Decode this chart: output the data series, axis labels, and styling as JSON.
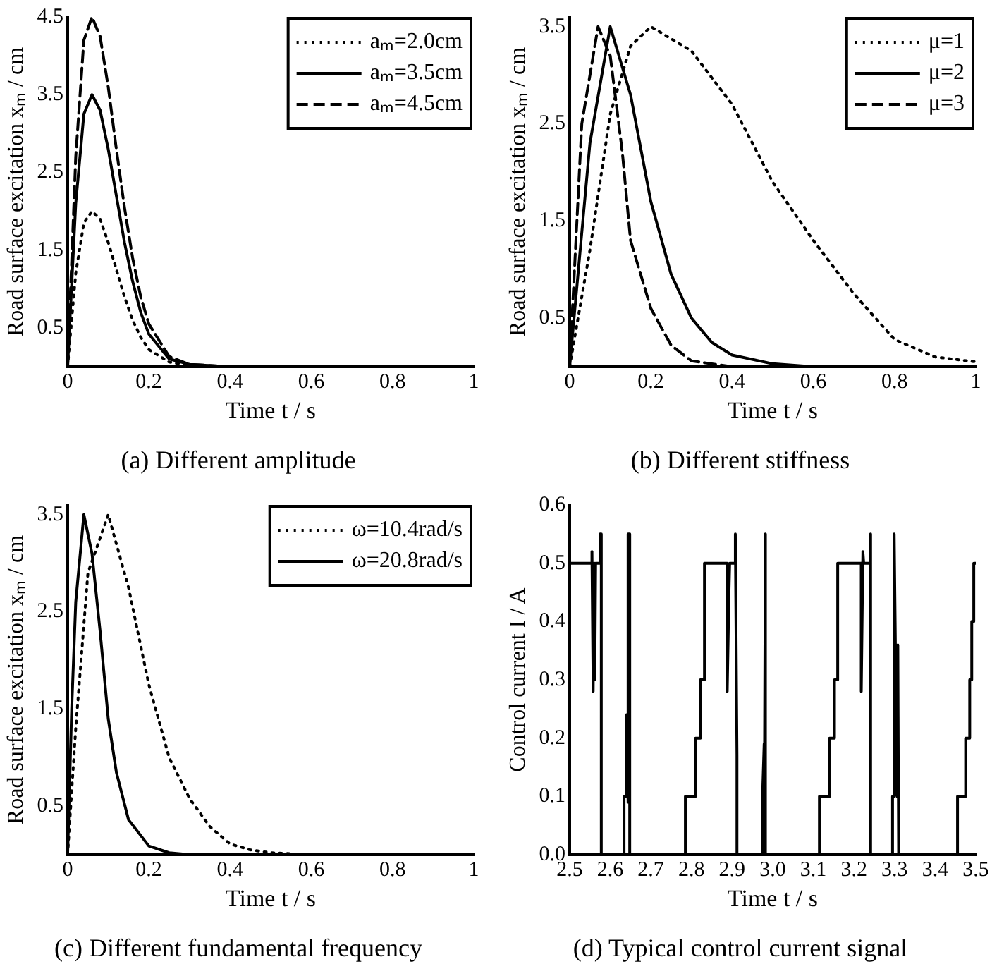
{
  "chart_data": [
    {
      "type": "line",
      "title": "(a) Different amplitude",
      "xlabel": "Time t / s",
      "ylabel": "Road surface excitation xₘ / cm",
      "xlim": [
        0,
        1
      ],
      "xticks": [
        0,
        0.2,
        0.4,
        0.6,
        0.8,
        1
      ],
      "ylim": [
        0,
        4.5
      ],
      "yticks": [
        0.5,
        1.5,
        2.5,
        3.5,
        4.5
      ],
      "legend": "top right",
      "marker": "none",
      "x": [
        0,
        0.02,
        0.04,
        0.06,
        0.08,
        0.1,
        0.12,
        0.14,
        0.16,
        0.18,
        0.2,
        0.25,
        0.3,
        0.4,
        1
      ],
      "series": [
        {
          "name": "aₘ=2.0cm",
          "color": "#000000",
          "line_style": "dotted",
          "values": [
            0,
            1.2,
            1.85,
            2.0,
            1.9,
            1.6,
            1.25,
            0.9,
            0.6,
            0.38,
            0.22,
            0.06,
            0.02,
            0,
            0
          ]
        },
        {
          "name": "aₘ=3.5cm",
          "color": "#000000",
          "line_style": "solid",
          "values": [
            0,
            2.1,
            3.25,
            3.5,
            3.3,
            2.8,
            2.2,
            1.6,
            1.1,
            0.7,
            0.42,
            0.1,
            0.03,
            0,
            0
          ]
        },
        {
          "name": "aₘ=4.5cm",
          "color": "#000000",
          "line_style": "dashed",
          "values": [
            0,
            2.7,
            4.2,
            4.5,
            4.25,
            3.6,
            2.8,
            2.05,
            1.4,
            0.9,
            0.55,
            0.13,
            0.03,
            0,
            0
          ]
        }
      ]
    },
    {
      "type": "line",
      "title": "(b) Different stiffness",
      "xlabel": "Time t / s",
      "ylabel": "Road surface excitation xₘ / cm",
      "xlim": [
        0,
        1
      ],
      "xticks": [
        0,
        0.2,
        0.4,
        0.6,
        0.8,
        1
      ],
      "ylim": [
        0,
        3.6
      ],
      "yticks": [
        0.5,
        1.5,
        2.5,
        3.5
      ],
      "legend": "top right",
      "marker": "none",
      "series": [
        {
          "name": "μ=1",
          "color": "#000000",
          "line_style": "dotted",
          "x": [
            0,
            0.05,
            0.1,
            0.15,
            0.2,
            0.3,
            0.4,
            0.5,
            0.6,
            0.7,
            0.8,
            0.9,
            1
          ],
          "values": [
            0,
            1.2,
            2.6,
            3.3,
            3.5,
            3.25,
            2.7,
            1.9,
            1.3,
            0.75,
            0.28,
            0.1,
            0.05
          ]
        },
        {
          "name": "μ=2",
          "color": "#000000",
          "line_style": "solid",
          "x": [
            0,
            0.05,
            0.1,
            0.15,
            0.2,
            0.25,
            0.3,
            0.35,
            0.4,
            0.5,
            0.6,
            1
          ],
          "values": [
            0,
            2.3,
            3.5,
            2.8,
            1.7,
            0.95,
            0.5,
            0.25,
            0.12,
            0.03,
            0,
            0
          ]
        },
        {
          "name": "μ=3",
          "color": "#000000",
          "line_style": "dashed",
          "x": [
            0,
            0.03,
            0.07,
            0.1,
            0.13,
            0.15,
            0.2,
            0.25,
            0.3,
            0.4,
            1
          ],
          "values": [
            0,
            2.5,
            3.5,
            3.2,
            2.2,
            1.3,
            0.6,
            0.22,
            0.06,
            0,
            0
          ]
        }
      ]
    },
    {
      "type": "line",
      "title": "(c) Different fundamental frequency",
      "xlabel": "Time t / s",
      "ylabel": "Road surface excitation xₘ / cm",
      "xlim": [
        0,
        1
      ],
      "xticks": [
        0,
        0.2,
        0.4,
        0.6,
        0.8,
        1
      ],
      "ylim": [
        0,
        3.6
      ],
      "yticks": [
        0.5,
        1.5,
        2.5,
        3.5
      ],
      "legend": "top right",
      "marker": "none",
      "series": [
        {
          "name": "ω=10.4rad/s",
          "color": "#000000",
          "line_style": "dotted",
          "x": [
            0,
            0.02,
            0.05,
            0.1,
            0.15,
            0.2,
            0.25,
            0.3,
            0.35,
            0.4,
            0.45,
            0.5,
            0.6,
            1
          ],
          "values": [
            0,
            1.3,
            2.9,
            3.5,
            2.75,
            1.75,
            1.0,
            0.58,
            0.29,
            0.11,
            0.05,
            0.02,
            0,
            0
          ]
        },
        {
          "name": "ω=20.8rad/s",
          "color": "#000000",
          "line_style": "solid",
          "x": [
            0,
            0.01,
            0.02,
            0.04,
            0.06,
            0.08,
            0.1,
            0.12,
            0.15,
            0.2,
            0.25,
            0.3,
            1
          ],
          "values": [
            0,
            1.5,
            2.6,
            3.5,
            3.1,
            2.3,
            1.4,
            0.85,
            0.36,
            0.09,
            0.02,
            0,
            0
          ]
        }
      ]
    },
    {
      "type": "line",
      "title": "(d) Typical control current signal",
      "xlabel": "Time t / s",
      "ylabel": "Control current I / A",
      "xlim": [
        2.5,
        3.5
      ],
      "xticks": [
        2.5,
        2.6,
        2.7,
        2.8,
        2.9,
        {
          "value": 3,
          "label": "3.0"
        },
        3.1,
        3.2,
        3.3,
        3.4,
        3.5
      ],
      "ylim": [
        0,
        0.6
      ],
      "yticks": [
        {
          "value": 0,
          "label": "0.0"
        },
        0.1,
        0.2,
        0.3,
        0.4,
        0.5,
        0.6
      ],
      "marker": "none",
      "line_style": "solid",
      "series": [
        {
          "color": "#000000",
          "x": [
            2.5,
            2.555,
            2.555,
            2.558,
            2.56,
            2.562,
            2.564,
            2.575,
            2.575,
            2.578,
            2.578,
            2.634,
            2.634,
            2.64,
            2.64,
            2.644,
            2.644,
            2.648,
            2.648,
            2.785,
            2.785,
            2.81,
            2.81,
            2.822,
            2.822,
            2.832,
            2.832,
            2.888,
            2.888,
            2.892,
            2.894,
            2.908,
            2.908,
            2.912,
            2.912,
            2.975,
            2.975,
            2.979,
            2.979,
            2.982,
            2.982,
            3.115,
            3.115,
            3.14,
            3.14,
            3.152,
            3.152,
            3.16,
            3.16,
            3.218,
            3.218,
            3.222,
            3.224,
            3.24,
            3.24,
            3.242,
            3.295,
            3.295,
            3.299,
            3.299,
            3.306,
            3.308,
            3.31,
            3.455,
            3.455,
            3.475,
            3.475,
            3.485,
            3.485,
            3.49,
            3.49,
            3.495,
            3.495,
            3.5
          ],
          "values": [
            0.5,
            0.5,
            0.52,
            0.28,
            0.5,
            0.3,
            0.5,
            0.5,
            0.55,
            0.55,
            0,
            0,
            0.1,
            0.1,
            0.24,
            0.09,
            0.55,
            0.55,
            0,
            0,
            0.1,
            0.1,
            0.2,
            0.2,
            0.3,
            0.3,
            0.5,
            0.5,
            0.28,
            0.44,
            0.5,
            0.5,
            0.55,
            0.17,
            0,
            0,
            0.1,
            0.19,
            0,
            0.55,
            0,
            0,
            0.1,
            0.1,
            0.2,
            0.2,
            0.3,
            0.3,
            0.5,
            0.5,
            0.28,
            0.52,
            0.5,
            0.5,
            0.55,
            0,
            0,
            0.1,
            0.1,
            0.55,
            0.1,
            0.36,
            0,
            0,
            0.1,
            0.1,
            0.2,
            0.2,
            0.3,
            0.3,
            0.4,
            0.4,
            0.5,
            0.5
          ]
        }
      ]
    }
  ]
}
